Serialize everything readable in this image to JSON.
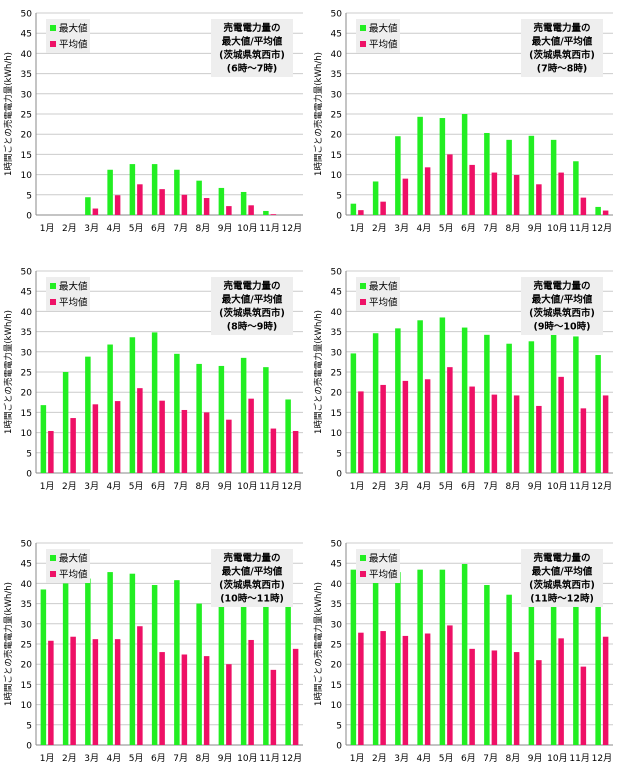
{
  "colors": {
    "max": "#22ee22",
    "avg": "#ee1166",
    "grid": "#cccccc",
    "axis": "#888888",
    "label_box": "#eeeeee"
  },
  "chart_data": [
    {
      "type": "bar",
      "title_lines": [
        "売電電力量の",
        "最大値/平均値",
        "(茨城県筑西市)",
        "(6時～7時)"
      ],
      "ylabel": "1時間ごとの売電電力量(kWh/h)",
      "ylim": [
        0,
        50
      ],
      "yticks": [
        0,
        5,
        10,
        15,
        20,
        25,
        30,
        35,
        40,
        45,
        50
      ],
      "grid": true,
      "legend": "top-left",
      "categories": [
        "1月",
        "2月",
        "3月",
        "4月",
        "5月",
        "6月",
        "7月",
        "8月",
        "9月",
        "10月",
        "11月",
        "12月"
      ],
      "series": [
        {
          "name": "最大値",
          "values": [
            0,
            0,
            4.4,
            11.2,
            12.6,
            12.6,
            11.2,
            8.5,
            6.7,
            5.7,
            1.0,
            0
          ]
        },
        {
          "name": "平均値",
          "values": [
            0,
            0,
            1.6,
            4.9,
            7.6,
            6.4,
            5.0,
            4.2,
            2.2,
            2.4,
            0.2,
            0
          ]
        }
      ]
    },
    {
      "type": "bar",
      "title_lines": [
        "売電電力量の",
        "最大値/平均値",
        "(茨城県筑西市)",
        "(7時～8時)"
      ],
      "ylabel": "1時間ごとの売電電力量(kWh/h)",
      "ylim": [
        0,
        50
      ],
      "yticks": [
        0,
        5,
        10,
        15,
        20,
        25,
        30,
        35,
        40,
        45,
        50
      ],
      "grid": true,
      "legend": "top-left",
      "categories": [
        "1月",
        "2月",
        "3月",
        "4月",
        "5月",
        "6月",
        "7月",
        "8月",
        "9月",
        "10月",
        "11月",
        "12月"
      ],
      "series": [
        {
          "name": "最大値",
          "values": [
            2.8,
            8.3,
            19.5,
            24.3,
            24.0,
            25.0,
            20.3,
            18.6,
            19.6,
            18.6,
            13.3,
            2.0
          ]
        },
        {
          "name": "平均値",
          "values": [
            1.2,
            3.3,
            9.0,
            11.8,
            15.0,
            12.4,
            10.5,
            9.9,
            7.6,
            10.5,
            4.3,
            1.1
          ]
        }
      ]
    },
    {
      "type": "bar",
      "title_lines": [
        "売電電力量の",
        "最大値/平均値",
        "(茨城県筑西市)",
        "(8時～9時)"
      ],
      "ylabel": "1時間ごとの売電電力量(kWh/h)",
      "ylim": [
        0,
        50
      ],
      "yticks": [
        0,
        5,
        10,
        15,
        20,
        25,
        30,
        35,
        40,
        45,
        50
      ],
      "grid": true,
      "legend": "top-left",
      "categories": [
        "1月",
        "2月",
        "3月",
        "4月",
        "5月",
        "6月",
        "7月",
        "8月",
        "9月",
        "10月",
        "11月",
        "12月"
      ],
      "series": [
        {
          "name": "最大値",
          "values": [
            16.8,
            25.0,
            28.8,
            31.8,
            33.6,
            34.8,
            29.5,
            27.0,
            26.5,
            28.5,
            26.2,
            18.2
          ]
        },
        {
          "name": "平均値",
          "values": [
            10.4,
            13.6,
            17.0,
            17.8,
            21.0,
            17.9,
            15.6,
            15.0,
            13.2,
            18.4,
            11.0,
            10.4
          ]
        }
      ]
    },
    {
      "type": "bar",
      "title_lines": [
        "売電電力量の",
        "最大値/平均値",
        "(茨城県筑西市)",
        "(9時～10時)"
      ],
      "ylabel": "1時間ごとの売電電力量(kWh/h)",
      "ylim": [
        0,
        50
      ],
      "yticks": [
        0,
        5,
        10,
        15,
        20,
        25,
        30,
        35,
        40,
        45,
        50
      ],
      "grid": true,
      "legend": "top-left",
      "categories": [
        "1月",
        "2月",
        "3月",
        "4月",
        "5月",
        "6月",
        "7月",
        "8月",
        "9月",
        "10月",
        "11月",
        "12月"
      ],
      "series": [
        {
          "name": "最大値",
          "values": [
            29.6,
            34.6,
            35.8,
            37.8,
            38.5,
            36.0,
            34.2,
            32.0,
            32.6,
            35.4,
            33.8,
            29.2
          ]
        },
        {
          "name": "平均値",
          "values": [
            20.2,
            21.8,
            22.8,
            23.2,
            26.2,
            21.4,
            19.4,
            19.2,
            16.6,
            23.8,
            16.0,
            19.2
          ]
        }
      ]
    },
    {
      "type": "bar",
      "title_lines": [
        "売電電力量の",
        "最大値/平均値",
        "(茨城県筑西市)",
        "(10時～11時)"
      ],
      "ylabel": "1時間ごとの売電電力量(kWh/h)",
      "ylim": [
        0,
        50
      ],
      "yticks": [
        0,
        5,
        10,
        15,
        20,
        25,
        30,
        35,
        40,
        45,
        50
      ],
      "grid": true,
      "legend": "top-left",
      "categories": [
        "1月",
        "2月",
        "3月",
        "4月",
        "5月",
        "6月",
        "7月",
        "8月",
        "9月",
        "10月",
        "11月",
        "12月"
      ],
      "series": [
        {
          "name": "最大値",
          "values": [
            38.5,
            40.0,
            41.2,
            42.8,
            42.4,
            39.6,
            40.8,
            35.0,
            36.8,
            39.4,
            38.8,
            34.6
          ]
        },
        {
          "name": "平均値",
          "values": [
            25.8,
            26.8,
            26.2,
            26.2,
            29.4,
            23.0,
            22.4,
            22.0,
            20.0,
            26.0,
            18.6,
            23.8
          ]
        }
      ]
    },
    {
      "type": "bar",
      "title_lines": [
        "売電電力量の",
        "最大値/平均値",
        "(茨城県筑西市)",
        "(11時～12時)"
      ],
      "ylabel": "1時間ごとの売電電力量(kWh/h)",
      "ylim": [
        0,
        50
      ],
      "yticks": [
        0,
        5,
        10,
        15,
        20,
        25,
        30,
        35,
        40,
        45,
        50
      ],
      "grid": true,
      "legend": "top-left",
      "categories": [
        "1月",
        "2月",
        "3月",
        "4月",
        "5月",
        "6月",
        "7月",
        "8月",
        "9月",
        "10月",
        "11月",
        "12月"
      ],
      "series": [
        {
          "name": "最大値",
          "values": [
            43.4,
            42.8,
            42.8,
            43.4,
            43.4,
            44.8,
            39.6,
            37.2,
            40.4,
            40.8,
            39.4,
            38.4
          ]
        },
        {
          "name": "平均値",
          "values": [
            27.8,
            28.2,
            27.0,
            27.6,
            29.6,
            23.8,
            23.4,
            23.0,
            21.0,
            26.4,
            19.4,
            26.8
          ]
        }
      ]
    }
  ]
}
